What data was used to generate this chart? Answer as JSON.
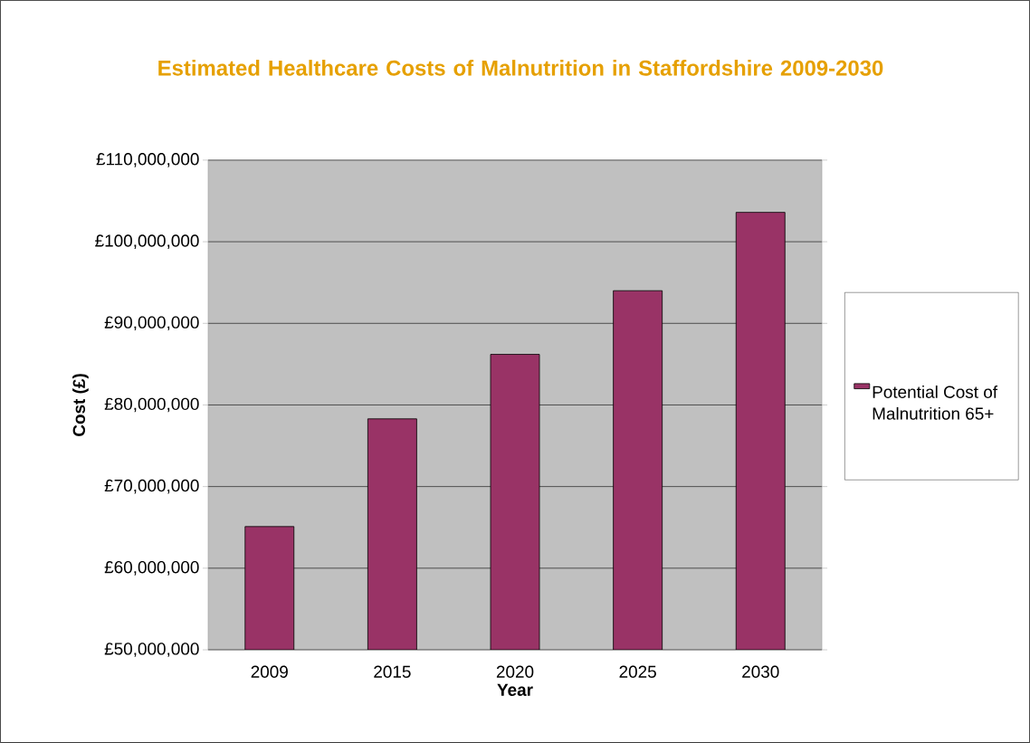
{
  "chart_data": {
    "type": "bar",
    "title": "Estimated Healthcare Costs of Malnutrition in Staffordshire 2009-2030",
    "xlabel": "Year",
    "ylabel": "Cost (£)",
    "categories": [
      "2009",
      "2015",
      "2020",
      "2025",
      "2030"
    ],
    "series": [
      {
        "name": "Potential Cost of Malnutrition 65+",
        "color": "#993366",
        "values": [
          65100000,
          78300000,
          86200000,
          94000000,
          103600000
        ]
      }
    ],
    "ylim": [
      50000000,
      110000000
    ],
    "yticks": [
      {
        "value": 50000000,
        "label": "£50,000,000"
      },
      {
        "value": 60000000,
        "label": "£60,000,000"
      },
      {
        "value": 70000000,
        "label": "£70,000,000"
      },
      {
        "value": 80000000,
        "label": "£80,000,000"
      },
      {
        "value": 90000000,
        "label": "£90,000,000"
      },
      {
        "value": 100000000,
        "label": "£100,000,000"
      },
      {
        "value": 110000000,
        "label": "£110,000,000"
      }
    ],
    "grid": "y",
    "legend": "right"
  }
}
